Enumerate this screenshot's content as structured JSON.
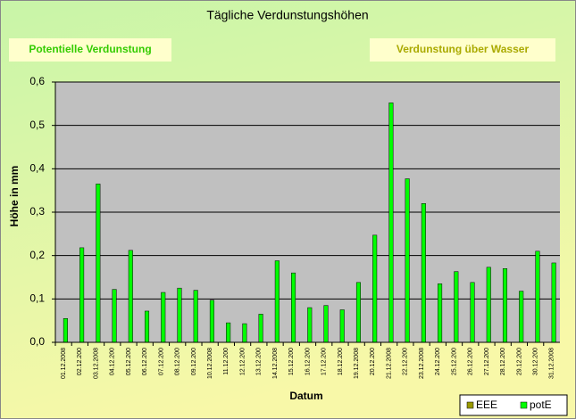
{
  "chart_data": {
    "type": "bar",
    "title": "Tägliche Verdunstungshöhen",
    "buttons": [
      "Potentielle Verdunstung",
      "Verdunstung über Wasser"
    ],
    "x_label": "Datum",
    "y_label": "Höhe in mm",
    "categories": [
      "01.12.2008",
      "02.12.200",
      "03.12.2008",
      "04.12.200",
      "05.12.200",
      "06.12.200",
      "07.12.200",
      "08.12.200",
      "09.12.200",
      "10.12.2008",
      "11.12.200",
      "12.12.200",
      "13.12.200",
      "14.12.2008",
      "15.12.200",
      "16.12.200",
      "17.12.200",
      "18.12.200",
      "19.12.2008",
      "20.12.200",
      "21.12.2008",
      "22.12.200",
      "23.12.2008",
      "24.12.200",
      "25.12.200",
      "26.12.200",
      "27.12.200",
      "28.12.200",
      "29.12.200",
      "30.12.200",
      "31.12.2008"
    ],
    "series": [
      {
        "name": "EEE",
        "color": "#999900",
        "values": [
          null,
          null,
          null,
          null,
          null,
          null,
          null,
          null,
          null,
          null,
          null,
          null,
          null,
          null,
          null,
          null,
          null,
          null,
          null,
          null,
          null,
          null,
          null,
          null,
          null,
          null,
          null,
          null,
          null,
          null,
          null
        ]
      },
      {
        "name": "potE",
        "color": "#00ff00",
        "values": [
          0.055,
          0.218,
          0.365,
          0.122,
          0.212,
          0.072,
          0.115,
          0.125,
          0.12,
          0.097,
          0.045,
          0.043,
          0.065,
          0.188,
          0.16,
          0.08,
          0.085,
          0.075,
          0.138,
          0.247,
          0.552,
          0.377,
          0.32,
          0.135,
          0.163,
          0.138,
          0.173,
          0.17,
          0.118,
          0.21,
          0.183
        ]
      }
    ],
    "ylim": [
      0,
      0.6
    ],
    "yticks": [
      {
        "value": 0,
        "label": "0,0"
      },
      {
        "value": 0.1,
        "label": "0,1"
      },
      {
        "value": 0.2,
        "label": "0,2"
      },
      {
        "value": 0.3,
        "label": "0,3"
      },
      {
        "value": 0.4,
        "label": "0,4"
      },
      {
        "value": 0.5,
        "label": "0,5"
      },
      {
        "value": 0.6,
        "label": "0,6"
      }
    ],
    "grid": true,
    "legend": "bottom-right"
  }
}
